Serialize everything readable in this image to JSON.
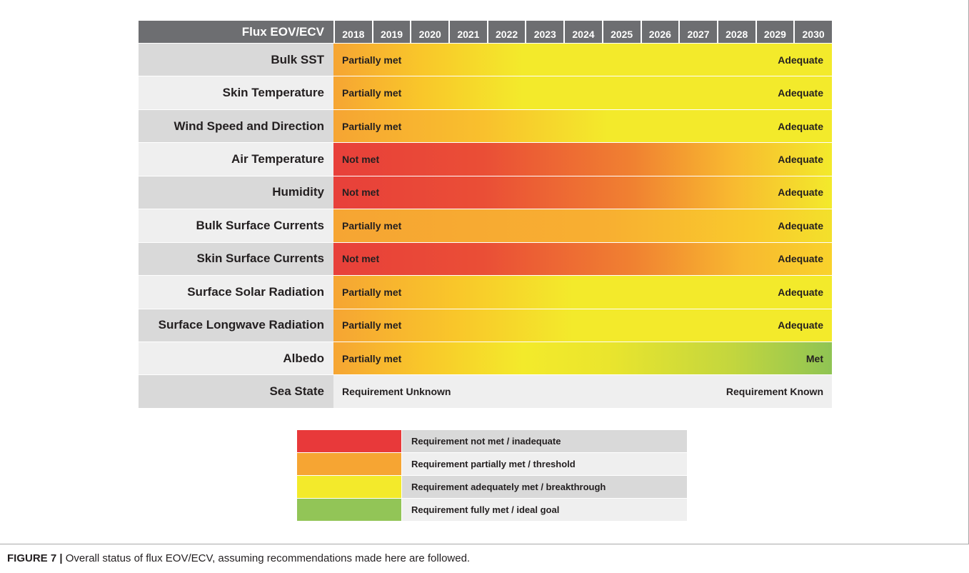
{
  "header": {
    "label": "Flux EOV/ECV",
    "years": [
      "2018",
      "2019",
      "2020",
      "2021",
      "2022",
      "2023",
      "2024",
      "2025",
      "2026",
      "2027",
      "2028",
      "2029",
      "2030"
    ]
  },
  "rows": [
    {
      "name": "Bulk SST",
      "start": "Partially met",
      "end": "Adequate",
      "gradient": "linear-gradient(90deg,#f6a533 0%,#f9c72a 18%,#f3ea2b 38%,#f3ea2b 100%)"
    },
    {
      "name": "Skin Temperature",
      "start": "Partially met",
      "end": "Adequate",
      "gradient": "linear-gradient(90deg,#f6a533 0%,#f9c72a 18%,#f3ea2b 38%,#f3ea2b 100%)"
    },
    {
      "name": "Wind Speed and Direction",
      "start": "Partially met",
      "end": "Adequate",
      "gradient": "linear-gradient(90deg,#f6a533 0%,#f9c02d 30%,#f3ea2b 55%,#f3ea2b 100%)"
    },
    {
      "name": "Air Temperature",
      "start": "Not met",
      "end": "Adequate",
      "gradient": "linear-gradient(90deg,#e8403a 0%,#ea4e36 30%,#f08131 60%,#f8b930 80%,#f3ea2b 100%)"
    },
    {
      "name": "Humidity",
      "start": "Not met",
      "end": "Adequate",
      "gradient": "linear-gradient(90deg,#e8403a 0%,#ea4e36 30%,#f08131 60%,#f8b930 80%,#f3ea2b 100%)"
    },
    {
      "name": "Bulk Surface Currents",
      "start": "Partially met",
      "end": "Adequate",
      "gradient": "linear-gradient(90deg,#f6a533 0%,#f8af31 55%,#f9cb2c 85%,#f3e02b 100%)"
    },
    {
      "name": "Skin Surface Currents",
      "start": "Not met",
      "end": "Adequate",
      "gradient": "linear-gradient(90deg,#e8403a 0%,#ea4e36 30%,#f08131 60%,#f8b930 82%,#f9d22b 100%)"
    },
    {
      "name": "Surface Solar Radiation",
      "start": "Partially met",
      "end": "Adequate",
      "gradient": "linear-gradient(90deg,#f6a533 0%,#f9c72a 25%,#f3ea2b 48%,#f3ea2b 100%)"
    },
    {
      "name": "Surface Longwave Radiation",
      "start": "Partially met",
      "end": "Adequate",
      "gradient": "linear-gradient(90deg,#f6a533 0%,#f9c72a 25%,#f3ea2b 48%,#f3ea2b 100%)"
    },
    {
      "name": "Albedo",
      "start": "Partially met",
      "end": "Met",
      "gradient": "linear-gradient(90deg,#f6a533 0%,#f9c72a 18%,#f3ea2b 38%,#eae52d 55%,#c3d63e 80%,#8fc454 100%)"
    },
    {
      "name": "Sea State",
      "start": "Requirement Unknown",
      "end": "Requirement Known",
      "gradient": ""
    }
  ],
  "legend": [
    {
      "color": "#e8393a",
      "text": "Requirement not met / inadequate"
    },
    {
      "color": "#f6a533",
      "text": "Requirement partially met / threshold"
    },
    {
      "color": "#f3ea2b",
      "text": "Requirement adequately met / breakthrough"
    },
    {
      "color": "#92c557",
      "text": "Requirement fully met / ideal goal"
    }
  ],
  "caption": {
    "label": "FIGURE 7 |",
    "text": " Overall status of flux EOV/ECV, assuming recommendations made here are followed."
  }
}
